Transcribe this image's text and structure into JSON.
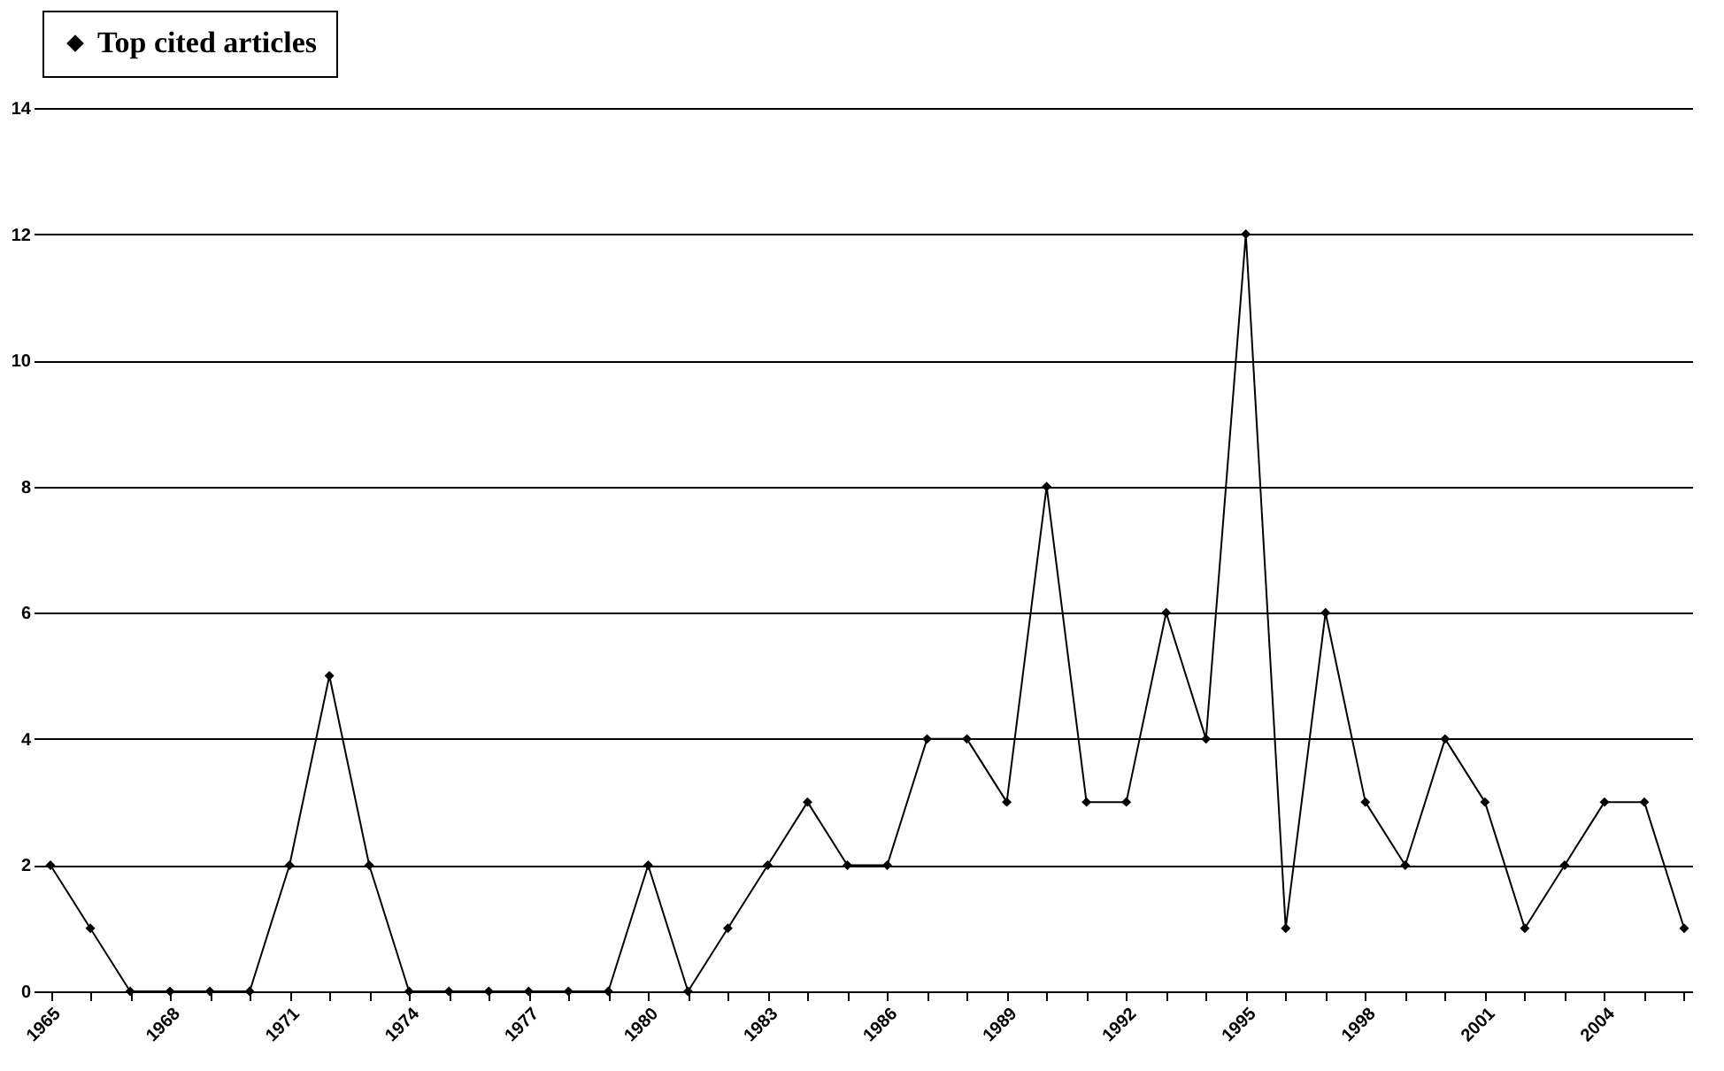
{
  "chart_data": {
    "type": "line",
    "categories": [
      "1965",
      null,
      null,
      "1968",
      null,
      null,
      "1971",
      null,
      null,
      "1974",
      null,
      null,
      "1977",
      null,
      null,
      "1980",
      null,
      null,
      "1983",
      null,
      null,
      "1986",
      null,
      null,
      "1989",
      null,
      null,
      "1992",
      null,
      null,
      "1995",
      null,
      null,
      "1998",
      null,
      null,
      "2001",
      null,
      null,
      "2004",
      null,
      null
    ],
    "series": [
      {
        "name": "Top cited articles",
        "color": "#000000",
        "values": [
          2,
          1,
          0,
          0,
          0,
          0,
          2,
          5,
          2,
          0,
          0,
          0,
          0,
          0,
          0,
          2,
          0,
          1,
          2,
          3,
          2,
          2,
          4,
          4,
          3,
          8,
          3,
          3,
          6,
          4,
          12,
          1,
          6,
          3,
          2,
          4,
          3,
          1,
          2,
          3,
          3,
          1
        ]
      }
    ],
    "ylim": [
      0,
      14
    ],
    "yticks": [
      0,
      2,
      4,
      6,
      8,
      10,
      12,
      14
    ],
    "grid": "y",
    "legend": "top",
    "marker": "diamond",
    "line_style": "solid"
  }
}
